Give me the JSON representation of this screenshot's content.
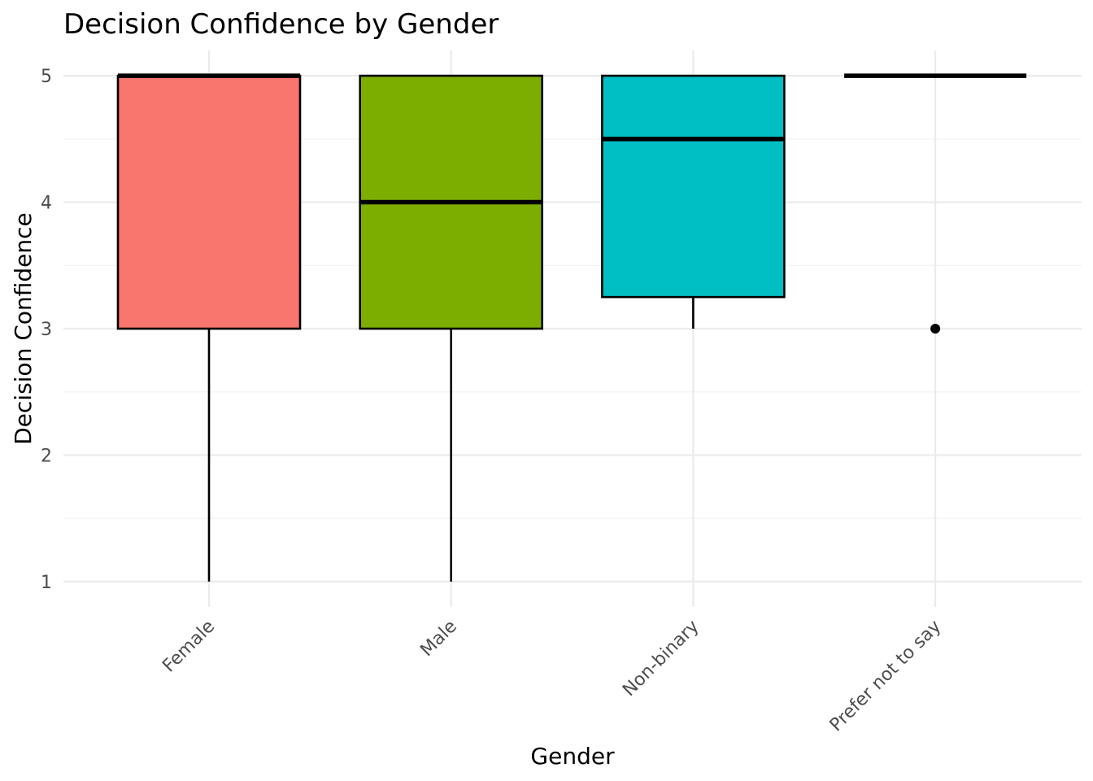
{
  "chart_data": {
    "type": "box",
    "title": "Decision Confidence by Gender",
    "xlabel": "Gender",
    "ylabel": "Decision Confidence",
    "ylim": [
      0.8,
      5.2
    ],
    "yticks": [
      1,
      2,
      3,
      4,
      5
    ],
    "grid": true,
    "legend": "none",
    "categories": [
      "Female",
      "Male",
      "Non-binary",
      "Prefer not to say"
    ],
    "boxes": [
      {
        "category": "Female",
        "min": 1,
        "q1": 3,
        "median": 5,
        "q3": 5,
        "max": 5,
        "outliers": [],
        "color": "#F8766D"
      },
      {
        "category": "Male",
        "min": 1,
        "q1": 3,
        "median": 4,
        "q3": 5,
        "max": 5,
        "outliers": [],
        "color": "#7CAE00"
      },
      {
        "category": "Non-binary",
        "min": 3,
        "q1": 3.25,
        "median": 4.5,
        "q3": 5,
        "max": 5,
        "outliers": [],
        "color": "#00BFC4"
      },
      {
        "category": "Prefer not to say",
        "min": 5,
        "q1": 5,
        "median": 5,
        "q3": 5,
        "max": 5,
        "outliers": [
          3
        ],
        "color": "#C77CFF"
      }
    ]
  }
}
